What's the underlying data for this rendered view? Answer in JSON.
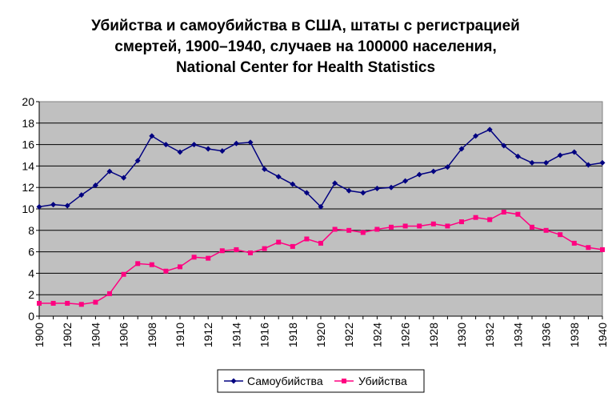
{
  "chart_data": {
    "type": "line",
    "title_lines": [
      "Убийства и самоубийства в США, штаты с регистрацией",
      "смертей, 1900–1940, случаев на 100000 населения,",
      "National Center for Health Statistics"
    ],
    "xlabel": "",
    "ylabel": "",
    "xlim": [
      1900,
      1940
    ],
    "ylim": [
      0,
      20
    ],
    "y_ticks": [
      "0",
      "2",
      "4",
      "6",
      "8",
      "10",
      "12",
      "14",
      "16",
      "18",
      "20"
    ],
    "x_ticks": [
      "1900",
      "1902",
      "1904",
      "1906",
      "1908",
      "1910",
      "1912",
      "1914",
      "1916",
      "1918",
      "1920",
      "1922",
      "1924",
      "1926",
      "1928",
      "1930",
      "1932",
      "1934",
      "1936",
      "1938",
      "1940"
    ],
    "grid": true,
    "plot_background": "#c0c0c0",
    "legend_position": "bottom",
    "x": [
      1900,
      1901,
      1902,
      1903,
      1904,
      1905,
      1906,
      1907,
      1908,
      1909,
      1910,
      1911,
      1912,
      1913,
      1914,
      1915,
      1916,
      1917,
      1918,
      1919,
      1920,
      1921,
      1922,
      1923,
      1924,
      1925,
      1926,
      1927,
      1928,
      1929,
      1930,
      1931,
      1932,
      1933,
      1934,
      1935,
      1936,
      1937,
      1938,
      1939,
      1940
    ],
    "series": [
      {
        "name": "Самоубийства",
        "color": "#000080",
        "marker": "diamond",
        "values": [
          10.2,
          10.4,
          10.3,
          11.3,
          12.2,
          13.5,
          12.9,
          14.5,
          16.8,
          16.0,
          15.3,
          16.0,
          15.6,
          15.4,
          16.1,
          16.2,
          13.7,
          13.0,
          12.3,
          11.5,
          10.2,
          12.4,
          11.7,
          11.5,
          11.9,
          12.0,
          12.6,
          13.2,
          13.5,
          13.9,
          15.6,
          16.8,
          17.4,
          15.9,
          14.9,
          14.3,
          14.3,
          15.0,
          15.3,
          14.1,
          14.3
        ]
      },
      {
        "name": "Убийства",
        "color": "#ff0080",
        "marker": "square",
        "values": [
          1.2,
          1.2,
          1.2,
          1.1,
          1.3,
          2.1,
          3.9,
          4.9,
          4.8,
          4.2,
          4.6,
          5.5,
          5.4,
          6.1,
          6.2,
          5.9,
          6.3,
          6.9,
          6.5,
          7.2,
          6.8,
          8.1,
          8.0,
          7.8,
          8.1,
          8.3,
          8.4,
          8.4,
          8.6,
          8.4,
          8.8,
          9.2,
          9.0,
          9.7,
          9.5,
          8.3,
          8.0,
          7.6,
          6.8,
          6.4,
          6.2
        ]
      }
    ]
  }
}
